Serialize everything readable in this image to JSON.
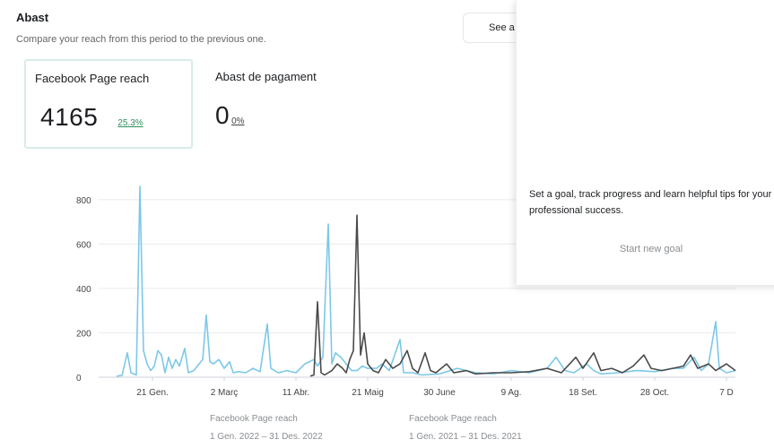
{
  "header": {
    "title": "Abast",
    "subtitle": "Compare your reach from this period to the previous one."
  },
  "see_button": {
    "label": "See a"
  },
  "metrics": [
    {
      "label": "Facebook Page reach",
      "value": "4165",
      "change": "25.3%"
    },
    {
      "label": "Abast de pagament",
      "value": "0",
      "change": "0%"
    }
  ],
  "goal_panel": {
    "text": "Set a goal, track progress and learn helpful tips for your professional success.",
    "button_label": "Start new goal"
  },
  "legend": [
    {
      "name": "Facebook Page reach",
      "range": "1 Gen. 2022 – 31 Des. 2022"
    },
    {
      "name": "Facebook Page reach",
      "range": "1 Gen. 2021 – 31 Des. 2021"
    }
  ],
  "colors": {
    "current": "#7cc8e8",
    "previous": "#4a4a4a",
    "positive": "#2f8f5b"
  },
  "chart_data": {
    "type": "line",
    "y_ticks": [
      0,
      200,
      400,
      600,
      800
    ],
    "ylim": [
      0,
      860
    ],
    "x_tick_labels": [
      "21 Gen.",
      "2 Març",
      "11 Abr.",
      "21 Maig",
      "30 June",
      "9 Ag.",
      "18 Set.",
      "28 Oct.",
      "7 D"
    ],
    "x_tick_days": [
      20,
      60,
      100,
      140,
      180,
      220,
      260,
      300,
      340
    ],
    "xlim": [
      0,
      345
    ],
    "grid": true,
    "series": [
      {
        "name": "1 Gen. 2022 – 31 Des. 2022",
        "color": "#7cc8e8",
        "points": [
          [
            0,
            5
          ],
          [
            3,
            8
          ],
          [
            6,
            110
          ],
          [
            8,
            20
          ],
          [
            11,
            10
          ],
          [
            13,
            860
          ],
          [
            15,
            120
          ],
          [
            17,
            60
          ],
          [
            19,
            30
          ],
          [
            21,
            50
          ],
          [
            23,
            120
          ],
          [
            25,
            100
          ],
          [
            27,
            20
          ],
          [
            29,
            90
          ],
          [
            31,
            40
          ],
          [
            33,
            80
          ],
          [
            35,
            50
          ],
          [
            38,
            130
          ],
          [
            40,
            20
          ],
          [
            43,
            30
          ],
          [
            46,
            60
          ],
          [
            48,
            80
          ],
          [
            50,
            280
          ],
          [
            52,
            70
          ],
          [
            54,
            60
          ],
          [
            57,
            80
          ],
          [
            60,
            40
          ],
          [
            63,
            70
          ],
          [
            65,
            20
          ],
          [
            68,
            25
          ],
          [
            72,
            20
          ],
          [
            76,
            40
          ],
          [
            80,
            25
          ],
          [
            84,
            240
          ],
          [
            86,
            40
          ],
          [
            90,
            20
          ],
          [
            95,
            30
          ],
          [
            100,
            20
          ],
          [
            105,
            60
          ],
          [
            110,
            80
          ],
          [
            112,
            50
          ],
          [
            115,
            90
          ],
          [
            118,
            690
          ],
          [
            120,
            60
          ],
          [
            122,
            110
          ],
          [
            125,
            90
          ],
          [
            128,
            60
          ],
          [
            131,
            30
          ],
          [
            134,
            30
          ],
          [
            137,
            50
          ],
          [
            140,
            40
          ],
          [
            145,
            40
          ],
          [
            148,
            60
          ],
          [
            152,
            30
          ],
          [
            158,
            170
          ],
          [
            160,
            20
          ],
          [
            165,
            20
          ],
          [
            170,
            10
          ],
          [
            180,
            15
          ],
          [
            190,
            40
          ],
          [
            200,
            20
          ],
          [
            210,
            15
          ],
          [
            220,
            30
          ],
          [
            230,
            20
          ],
          [
            240,
            40
          ],
          [
            245,
            90
          ],
          [
            250,
            30
          ],
          [
            255,
            20
          ],
          [
            262,
            60
          ],
          [
            266,
            30
          ],
          [
            270,
            15
          ],
          [
            280,
            20
          ],
          [
            290,
            30
          ],
          [
            300,
            25
          ],
          [
            310,
            40
          ],
          [
            316,
            40
          ],
          [
            322,
            90
          ],
          [
            326,
            30
          ],
          [
            330,
            60
          ],
          [
            334,
            250
          ],
          [
            336,
            40
          ],
          [
            340,
            20
          ],
          [
            345,
            30
          ]
        ]
      },
      {
        "name": "1 Gen. 2021 – 31 Des. 2021",
        "color": "#4a4a4a",
        "points": [
          [
            108,
            5
          ],
          [
            110,
            10
          ],
          [
            112,
            340
          ],
          [
            114,
            20
          ],
          [
            116,
            10
          ],
          [
            120,
            30
          ],
          [
            123,
            60
          ],
          [
            126,
            40
          ],
          [
            128,
            20
          ],
          [
            130,
            80
          ],
          [
            132,
            120
          ],
          [
            134,
            730
          ],
          [
            136,
            100
          ],
          [
            138,
            200
          ],
          [
            140,
            60
          ],
          [
            143,
            30
          ],
          [
            146,
            20
          ],
          [
            150,
            80
          ],
          [
            154,
            40
          ],
          [
            158,
            60
          ],
          [
            162,
            120
          ],
          [
            165,
            40
          ],
          [
            168,
            20
          ],
          [
            172,
            110
          ],
          [
            175,
            30
          ],
          [
            178,
            20
          ],
          [
            184,
            60
          ],
          [
            188,
            20
          ],
          [
            195,
            30
          ],
          [
            200,
            15
          ],
          [
            210,
            20
          ],
          [
            220,
            20
          ],
          [
            230,
            25
          ],
          [
            240,
            40
          ],
          [
            248,
            20
          ],
          [
            256,
            90
          ],
          [
            260,
            40
          ],
          [
            266,
            110
          ],
          [
            270,
            30
          ],
          [
            276,
            40
          ],
          [
            282,
            20
          ],
          [
            288,
            50
          ],
          [
            294,
            100
          ],
          [
            298,
            40
          ],
          [
            304,
            30
          ],
          [
            310,
            40
          ],
          [
            316,
            50
          ],
          [
            320,
            100
          ],
          [
            324,
            40
          ],
          [
            330,
            60
          ],
          [
            334,
            30
          ],
          [
            340,
            60
          ],
          [
            345,
            30
          ]
        ]
      }
    ]
  }
}
